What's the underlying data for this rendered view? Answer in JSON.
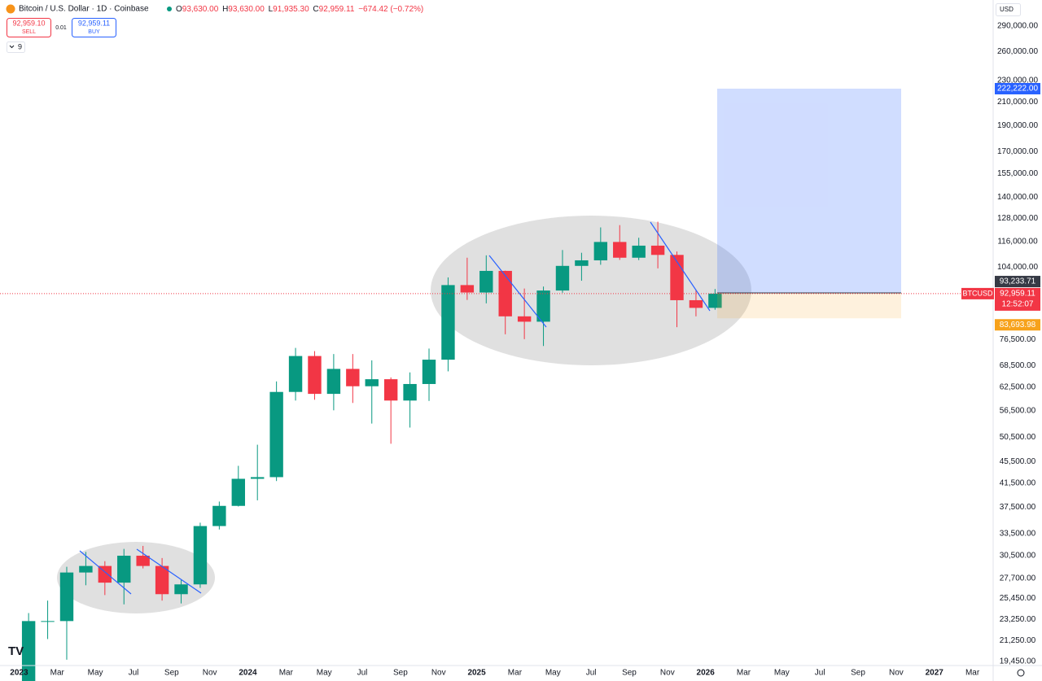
{
  "header": {
    "title": "Bitcoin / U.S. Dollar · 1D · Coinbase",
    "ohlc": [
      {
        "k": "O",
        "v": "93,630.00"
      },
      {
        "k": "H",
        "v": "93,630.00"
      },
      {
        "k": "L",
        "v": "91,935.30"
      },
      {
        "k": "C",
        "v": "92,959.11"
      }
    ],
    "change": "−674.42 (−0.72%)",
    "sell": {
      "price": "92,959.10",
      "label": "SELL"
    },
    "spread": "0.01",
    "buy": {
      "price": "92,959.11",
      "label": "BUY"
    },
    "indicators": "9",
    "currency": "USD"
  },
  "chart_data": {
    "type": "candlestick",
    "log": true,
    "grid": false,
    "up_color": "#089981",
    "down_color": "#f23645",
    "x": [
      "2023-01",
      "2023-02",
      "2023-03",
      "2023-04",
      "2023-05",
      "2023-06",
      "2023-07",
      "2023-08",
      "2023-09",
      "2023-10",
      "2023-11",
      "2023-12",
      "2024-01",
      "2024-02",
      "2024-03",
      "2024-04",
      "2024-05",
      "2024-06",
      "2024-07",
      "2024-08",
      "2024-09",
      "2024-10",
      "2024-11",
      "2024-12",
      "2025-01",
      "2025-02",
      "2025-03",
      "2025-04",
      "2025-05",
      "2025-06",
      "2025-07",
      "2025-08",
      "2025-09",
      "2025-10",
      "2025-11",
      "2025-12",
      "2026-01"
    ],
    "open": [
      16500,
      23100,
      23100,
      28400,
      29200,
      27200,
      30500,
      29200,
      25900,
      27000,
      34600,
      37700,
      42300,
      42600,
      61200,
      71300,
      60700,
      67500,
      62700,
      64600,
      59000,
      63300,
      70200,
      96400,
      93400,
      102400,
      84400,
      82500,
      94200,
      104600,
      107100,
      115800,
      108300,
      114000,
      109600,
      90400,
      87500
    ],
    "high": [
      23900,
      25200,
      29100,
      31000,
      29800,
      31400,
      31800,
      30200,
      27500,
      35100,
      38400,
      44700,
      48900,
      64000,
      73800,
      72800,
      71900,
      71900,
      70000,
      65100,
      66500,
      73600,
      99600,
      108300,
      109400,
      102500,
      95000,
      95800,
      111900,
      110600,
      123200,
      124400,
      117900,
      126200,
      111200,
      94600,
      94800
    ],
    "low": [
      16500,
      21400,
      19600,
      26900,
      25800,
      24800,
      28900,
      25200,
      24900,
      26600,
      34100,
      37600,
      38600,
      41900,
      59000,
      59200,
      56600,
      58400,
      53500,
      49100,
      52600,
      58900,
      66800,
      90500,
      89200,
      78200,
      76600,
      74400,
      93300,
      98200,
      105100,
      107300,
      107200,
      103500,
      80600,
      84400,
      86800
    ],
    "close": [
      23100,
      23100,
      28400,
      29200,
      27200,
      30500,
      29200,
      25900,
      27000,
      34600,
      37700,
      42300,
      42600,
      61200,
      71300,
      60700,
      67500,
      62700,
      64600,
      59000,
      63300,
      70200,
      96400,
      93400,
      102400,
      84400,
      82500,
      94200,
      104600,
      107100,
      115800,
      108300,
      114000,
      109600,
      90400,
      87500,
      92959.11
    ],
    "xlim": [
      "2022-12",
      "2027-04"
    ],
    "xticks": [
      {
        "value": "2023-01",
        "label": "2023"
      },
      {
        "value": "2023-03",
        "label": "Mar"
      },
      {
        "value": "2023-05",
        "label": "May"
      },
      {
        "value": "2023-07",
        "label": "Jul"
      },
      {
        "value": "2023-09",
        "label": "Sep"
      },
      {
        "value": "2023-11",
        "label": "Nov"
      },
      {
        "value": "2024-01",
        "label": "2024"
      },
      {
        "value": "2024-03",
        "label": "Mar"
      },
      {
        "value": "2024-05",
        "label": "May"
      },
      {
        "value": "2024-07",
        "label": "Jul"
      },
      {
        "value": "2024-09",
        "label": "Sep"
      },
      {
        "value": "2024-11",
        "label": "Nov"
      },
      {
        "value": "2025-01",
        "label": "2025"
      },
      {
        "value": "2025-03",
        "label": "Mar"
      },
      {
        "value": "2025-05",
        "label": "May"
      },
      {
        "value": "2025-07",
        "label": "Jul"
      },
      {
        "value": "2025-09",
        "label": "Sep"
      },
      {
        "value": "2025-11",
        "label": "Nov"
      },
      {
        "value": "2026-01",
        "label": "2026"
      },
      {
        "value": "2026-03",
        "label": "Mar"
      },
      {
        "value": "2026-05",
        "label": "May"
      },
      {
        "value": "2026-07",
        "label": "Jul"
      },
      {
        "value": "2026-09",
        "label": "Sep"
      },
      {
        "value": "2026-11",
        "label": "Nov"
      },
      {
        "value": "2027-01",
        "label": "2027"
      },
      {
        "value": "2027-03",
        "label": "Mar"
      }
    ],
    "ylim": [
      19120,
      324000
    ],
    "yticks": [
      {
        "value": 290000,
        "label": "290,000.00"
      },
      {
        "value": 260000,
        "label": "260,000.00"
      },
      {
        "value": 230000,
        "label": "230,000.00"
      },
      {
        "value": 210000,
        "label": "210,000.00"
      },
      {
        "value": 190000,
        "label": "190,000.00"
      },
      {
        "value": 170000,
        "label": "170,000.00"
      },
      {
        "value": 155000,
        "label": "155,000.00"
      },
      {
        "value": 140000,
        "label": "140,000.00"
      },
      {
        "value": 128000,
        "label": "128,000.00"
      },
      {
        "value": 116000,
        "label": "116,000.00"
      },
      {
        "value": 104000,
        "label": "104,000.00"
      },
      {
        "value": 76500,
        "label": "76,500.00"
      },
      {
        "value": 68500,
        "label": "68,500.00"
      },
      {
        "value": 62500,
        "label": "62,500.00"
      },
      {
        "value": 56500,
        "label": "56,500.00"
      },
      {
        "value": 50500,
        "label": "50,500.00"
      },
      {
        "value": 45500,
        "label": "45,500.00"
      },
      {
        "value": 41500,
        "label": "41,500.00"
      },
      {
        "value": 37500,
        "label": "37,500.00"
      },
      {
        "value": 33500,
        "label": "33,500.00"
      },
      {
        "value": 30500,
        "label": "30,500.00"
      },
      {
        "value": 27700,
        "label": "27,700.00"
      },
      {
        "value": 25450,
        "label": "25,450.00"
      },
      {
        "value": 23250,
        "label": "23,250.00"
      },
      {
        "value": 21250,
        "label": "21,250.00"
      },
      {
        "value": 19450,
        "label": "19,450.00"
      }
    ],
    "position": {
      "values": [
        222222,
        93233.71,
        83693.98
      ],
      "value_labels": [
        "222,222.00",
        "93,233.71",
        "83,693.98"
      ],
      "colors": [
        "#2962ff",
        "#363a45",
        "#f7a21b"
      ]
    },
    "last": {
      "value": 92959.11,
      "label": "92,959.11",
      "symbol": "BTCUSD",
      "countdown": "12:52:07",
      "color": "#f23645"
    }
  }
}
